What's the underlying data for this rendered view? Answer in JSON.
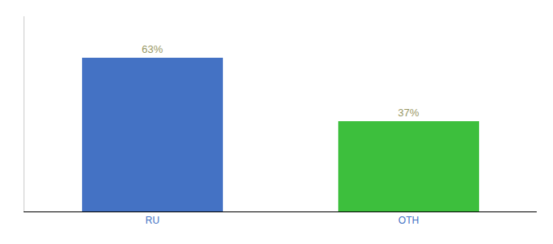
{
  "chart_data": {
    "type": "bar",
    "categories": [
      "RU",
      "OTH"
    ],
    "values": [
      63,
      37
    ],
    "value_labels": [
      "63%",
      "37%"
    ],
    "data_labels": true,
    "colors": [
      "#4472C4",
      "#3DBF3D"
    ],
    "ylim": [
      0,
      80
    ],
    "grid": false,
    "tick_labels": "x"
  }
}
